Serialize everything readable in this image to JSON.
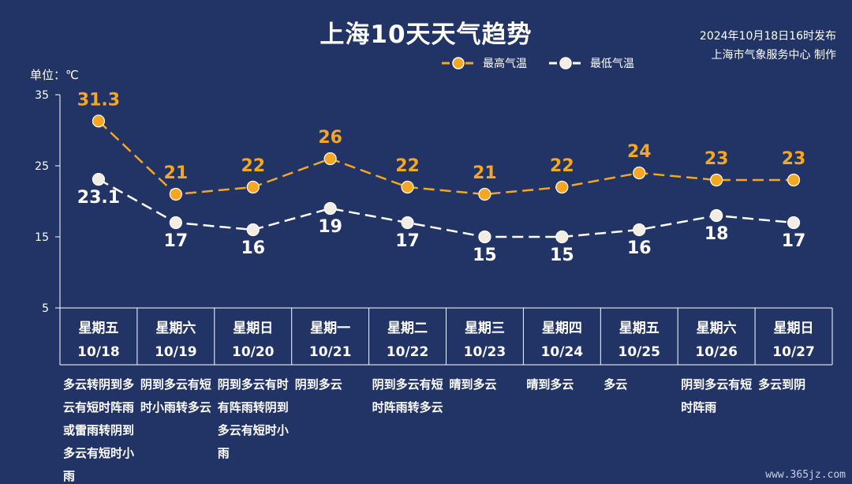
{
  "header": {
    "title": "上海10天天气趋势",
    "publish_line1": "2024年10月18日16时发布",
    "publish_line2": "上海市气象服务中心 制作",
    "unit_label": "单位：℃"
  },
  "watermark": "www.365jz.com",
  "colors": {
    "background": "#223466",
    "high_series": "#f5a623",
    "low_series": "#ffffff",
    "axis": "#ffffff"
  },
  "chart_data": {
    "type": "line",
    "title": "上海10天天气趋势",
    "ylabel": "单位：℃",
    "ylim": [
      5,
      35
    ],
    "yticks": [
      5,
      15,
      25,
      35
    ],
    "grid": false,
    "legend_position": "top-right",
    "days": [
      {
        "weekday": "星期五",
        "date": "10/18",
        "weather": "多云转阴到多云有短时阵雨或雷雨转阴到多云有短时小雨"
      },
      {
        "weekday": "星期六",
        "date": "10/19",
        "weather": "阴到多云有短时小雨转多云"
      },
      {
        "weekday": "星期日",
        "date": "10/20",
        "weather": "阴到多云有时有阵雨转阴到多云有短时小雨"
      },
      {
        "weekday": "星期一",
        "date": "10/21",
        "weather": "阴到多云"
      },
      {
        "weekday": "星期二",
        "date": "10/22",
        "weather": "阴到多云有短时阵雨转多云"
      },
      {
        "weekday": "星期三",
        "date": "10/23",
        "weather": "晴到多云"
      },
      {
        "weekday": "星期四",
        "date": "10/24",
        "weather": "晴到多云"
      },
      {
        "weekday": "星期五",
        "date": "10/25",
        "weather": "多云"
      },
      {
        "weekday": "星期六",
        "date": "10/26",
        "weather": "阴到多云有短时阵雨"
      },
      {
        "weekday": "星期日",
        "date": "10/27",
        "weather": "多云到阴"
      }
    ],
    "series": [
      {
        "name": "最高气温",
        "values": [
          31.3,
          21,
          22,
          26,
          22,
          21,
          22,
          24,
          23,
          23
        ],
        "labels": [
          "31.3",
          "21",
          "22",
          "26",
          "22",
          "21",
          "22",
          "24",
          "23",
          "23"
        ]
      },
      {
        "name": "最低气温",
        "values": [
          23.1,
          17,
          16,
          19,
          17,
          15,
          15,
          16,
          18,
          17
        ],
        "labels": [
          "23.1",
          "17",
          "16",
          "19",
          "17",
          "15",
          "15",
          "16",
          "18",
          "17"
        ]
      }
    ]
  }
}
